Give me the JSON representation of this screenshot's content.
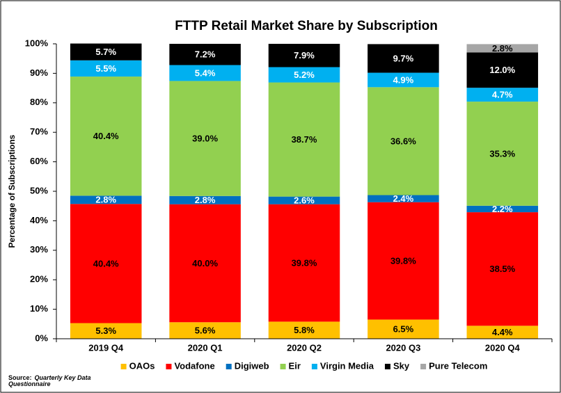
{
  "chart_data": {
    "type": "stacked_bar",
    "title": "FTTP Retail Market Share by Subscription",
    "y_label": "Percentage of Subscriptions",
    "categories": [
      "2019 Q4",
      "2020 Q1",
      "2020 Q2",
      "2020 Q3",
      "2020 Q4"
    ],
    "series": [
      {
        "name": "OAOs",
        "color": "#ffc000",
        "label_color": "#000000",
        "values": [
          5.3,
          5.6,
          5.8,
          6.5,
          4.4
        ],
        "value_labels": [
          "5.3%",
          "5.6%",
          "5.8%",
          "6.5%",
          "4.4%"
        ]
      },
      {
        "name": "Vodafone",
        "color": "#ff0000",
        "label_color": "#000000",
        "values": [
          40.4,
          40.0,
          39.8,
          39.8,
          38.5
        ],
        "value_labels": [
          "40.4%",
          "40.0%",
          "39.8%",
          "39.8%",
          "38.5%"
        ]
      },
      {
        "name": "Digiweb",
        "color": "#0070c0",
        "label_color": "#ffffff",
        "values": [
          2.8,
          2.8,
          2.6,
          2.4,
          2.2
        ],
        "value_labels": [
          "2.8%",
          "2.8%",
          "2.6%",
          "2.4%",
          "2.2%"
        ]
      },
      {
        "name": "Eir",
        "color": "#92d050",
        "label_color": "#000000",
        "values": [
          40.4,
          39.0,
          38.7,
          36.6,
          35.3
        ],
        "value_labels": [
          "40.4%",
          "39.0%",
          "38.7%",
          "36.6%",
          "35.3%"
        ]
      },
      {
        "name": "Virgin Media",
        "color": "#00b0f0",
        "label_color": "#ffffff",
        "values": [
          5.5,
          5.4,
          5.2,
          4.9,
          4.7
        ],
        "value_labels": [
          "5.5%",
          "5.4%",
          "5.2%",
          "4.9%",
          "4.7%"
        ]
      },
      {
        "name": "Sky",
        "color": "#000000",
        "label_color": "#ffffff",
        "values": [
          5.7,
          7.2,
          7.9,
          9.7,
          12.0
        ],
        "value_labels": [
          "5.7%",
          "7.2%",
          "7.9%",
          "9.7%",
          "12.0%"
        ]
      },
      {
        "name": "Pure Telecom",
        "color": "#a6a6a6",
        "label_color": "#000000",
        "values": [
          null,
          null,
          null,
          null,
          2.8
        ],
        "value_labels": [
          null,
          null,
          null,
          null,
          "2.8%"
        ]
      }
    ],
    "ylim": [
      0,
      100
    ],
    "yticks": [
      {
        "value": 0,
        "label": "0%"
      },
      {
        "value": 10,
        "label": "10%"
      },
      {
        "value": 20,
        "label": "20%"
      },
      {
        "value": 30,
        "label": "30%"
      },
      {
        "value": 40,
        "label": "40%"
      },
      {
        "value": 50,
        "label": "50%"
      },
      {
        "value": 60,
        "label": "60%"
      },
      {
        "value": 70,
        "label": "70%"
      },
      {
        "value": 80,
        "label": "80%"
      },
      {
        "value": 90,
        "label": "90%"
      },
      {
        "value": 100,
        "label": "100%"
      }
    ],
    "legend": "bottom",
    "source_label": "Source:",
    "source": "Quarterly Key Data Questionnaire"
  }
}
